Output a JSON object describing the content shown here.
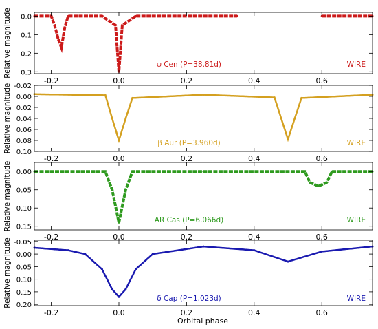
{
  "figure": {
    "xlabel": "Orbital phase",
    "ylabel": "Relative magnitude"
  },
  "chart_data": [
    {
      "type": "scatter",
      "star": "ψ Cen",
      "period": "(P=38.81d)",
      "label": "ψ Cen (P=38.81d)",
      "instrument": "WIRE",
      "color": "#cc1a1a",
      "xlim": [
        -0.25,
        0.75
      ],
      "ylim": [
        -0.02,
        0.31
      ],
      "y_inverted": true,
      "xticks": [
        "-0.2",
        "0.0",
        "0.2",
        "0.4",
        "0.6"
      ],
      "xtick_values": [
        -0.2,
        0.0,
        0.2,
        0.4,
        0.6
      ],
      "yticks": [
        "0.0",
        "0.1",
        "0.2",
        "0.3"
      ],
      "ytick_values": [
        0.0,
        0.1,
        0.2,
        0.3
      ],
      "x": [
        -0.25,
        -0.2,
        -0.19,
        -0.18,
        -0.17,
        -0.16,
        -0.15,
        -0.05,
        -0.01,
        0.0,
        0.01,
        0.05,
        0.35,
        0.6,
        0.75
      ],
      "y": [
        0.0,
        0.0,
        0.05,
        0.12,
        0.17,
        0.06,
        0.0,
        0.0,
        0.05,
        0.3,
        0.05,
        0.0,
        0.0,
        0.0,
        0.0
      ],
      "segments": [
        [
          -0.25,
          0.35
        ],
        [
          0.6,
          0.75
        ]
      ]
    },
    {
      "type": "line",
      "star": "β Aur",
      "period": "(P=3.960d)",
      "label": "β Aur (P=3.960d)",
      "instrument": "WIRE",
      "color": "#d4a020",
      "xlim": [
        -0.25,
        0.75
      ],
      "ylim": [
        -0.02,
        0.1
      ],
      "y_inverted": true,
      "xticks": [
        "-0.2",
        "0.0",
        "0.2",
        "0.4",
        "0.6"
      ],
      "xtick_values": [
        -0.2,
        0.0,
        0.2,
        0.4,
        0.6
      ],
      "yticks": [
        "-0.02",
        "0.00",
        "0.02",
        "0.04",
        "0.06",
        "0.08",
        "0.10"
      ],
      "ytick_values": [
        -0.02,
        0.0,
        0.02,
        0.04,
        0.06,
        0.08,
        0.1
      ],
      "x": [
        -0.25,
        -0.04,
        -0.02,
        0.0,
        0.02,
        0.04,
        0.25,
        0.46,
        0.48,
        0.5,
        0.52,
        0.54,
        0.75
      ],
      "y": [
        -0.004,
        -0.002,
        0.04,
        0.08,
        0.04,
        0.003,
        -0.003,
        0.002,
        0.04,
        0.078,
        0.04,
        0.003,
        -0.003
      ],
      "segments": [
        [
          -0.25,
          0.75
        ]
      ]
    },
    {
      "type": "scatter",
      "star": "AR Cas",
      "period": "(P=6.066d)",
      "label": "AR Cas (P=6.066d)",
      "instrument": "WIRE",
      "color": "#2e9a1e",
      "xlim": [
        -0.25,
        0.75
      ],
      "ylim": [
        -0.025,
        0.16
      ],
      "y_inverted": true,
      "xticks": [
        "-0.2",
        "0.0",
        "0.2",
        "0.4",
        "0.6"
      ],
      "xtick_values": [
        -0.2,
        0.0,
        0.2,
        0.4,
        0.6
      ],
      "yticks": [
        "0.00",
        "0.05",
        "0.10",
        "0.15"
      ],
      "ytick_values": [
        0.0,
        0.05,
        0.1,
        0.15
      ],
      "x": [
        -0.25,
        -0.04,
        -0.02,
        0.0,
        0.02,
        0.04,
        0.25,
        0.55,
        0.565,
        0.59,
        0.615,
        0.63,
        0.75
      ],
      "y": [
        0.0,
        0.0,
        0.05,
        0.14,
        0.05,
        0.0,
        0.0,
        0.0,
        0.03,
        0.04,
        0.03,
        0.0,
        0.0
      ],
      "segments": [
        [
          -0.25,
          0.75
        ]
      ]
    },
    {
      "type": "line",
      "star": "δ Cap",
      "period": "(P=1.023d)",
      "label": "δ Cap (P=1.023d)",
      "instrument": "WIRE",
      "color": "#1a1ab0",
      "xlim": [
        -0.25,
        0.75
      ],
      "ylim": [
        -0.055,
        0.205
      ],
      "y_inverted": true,
      "xticks": [
        "-0.2",
        "0.0",
        "0.2",
        "0.4",
        "0.6"
      ],
      "xtick_values": [
        -0.2,
        0.0,
        0.2,
        0.4,
        0.6
      ],
      "yticks": [
        "-0.05",
        "0.00",
        "0.05",
        "0.10",
        "0.15",
        "0.20"
      ],
      "ytick_values": [
        -0.05,
        0.0,
        0.05,
        0.1,
        0.15,
        0.2
      ],
      "x": [
        -0.25,
        -0.15,
        -0.1,
        -0.05,
        -0.02,
        0.0,
        0.02,
        0.05,
        0.1,
        0.25,
        0.4,
        0.5,
        0.6,
        0.75
      ],
      "y": [
        -0.025,
        -0.015,
        0.0,
        0.06,
        0.14,
        0.17,
        0.14,
        0.06,
        0.0,
        -0.03,
        -0.015,
        0.03,
        -0.01,
        -0.03
      ],
      "segments": [
        [
          -0.25,
          0.75
        ]
      ]
    }
  ]
}
